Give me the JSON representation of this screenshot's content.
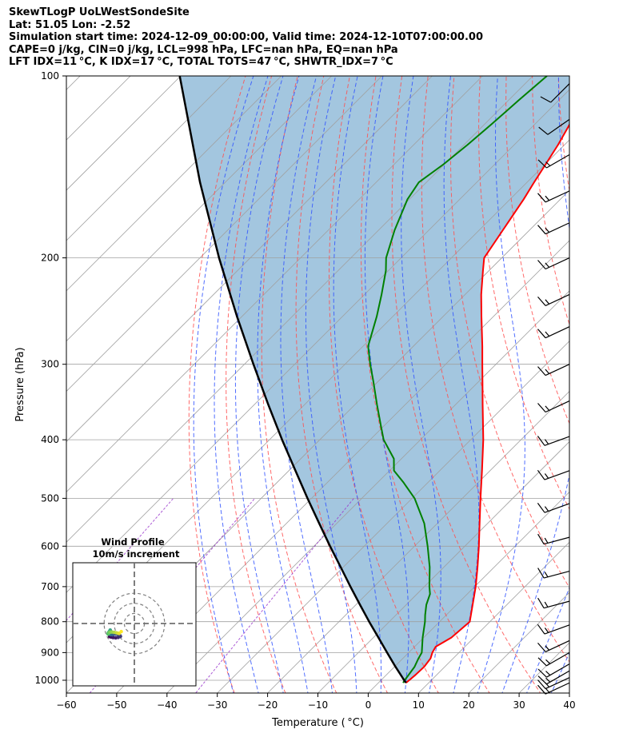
{
  "header": {
    "line1": "SkewTLogP UoLWestSondeSite",
    "line2": "Lat: 51.05   Lon: -2.52",
    "line3": "Simulation start time: 2024-12-09_00:00:00, Valid time: 2024-12-10T07:00:00.00",
    "line4": "CAPE=0 j/kg, CIN=0 j/kg, LCL=998 hPa, LFC=nan hPa, EQ=nan hPa",
    "line5": "LFT IDX=11 °C, K IDX=17 °C, TOTAL TOTS=47 °C, SHWTR_IDX=7 °C"
  },
  "colors": {
    "temperature": "#ff0000",
    "dewpoint": "#008000",
    "parcel": "#000000",
    "cin_shading": "#a3c6df",
    "dry_adiabats": "#ff5050",
    "moist_adiabats": "#3355ff",
    "mixing_ratio": "#9933cc",
    "isotherms": "#a0a0a0"
  },
  "chart_data": [
    {
      "type": "line",
      "title": "",
      "xlabel": "Temperature ( °C)",
      "ylabel": "Pressure (hPa)",
      "xlim": [
        -60,
        40
      ],
      "ylim": [
        1050,
        100
      ],
      "y_scale": "log",
      "skew": true,
      "grid": true,
      "x_ticks": [
        -60,
        -50,
        -40,
        -30,
        -20,
        -10,
        0,
        10,
        20,
        30,
        40
      ],
      "x_tick_labels": [
        "−60",
        "−50",
        "−40",
        "−30",
        "−20",
        "−10",
        "0",
        "10",
        "20",
        "30",
        "40"
      ],
      "y_ticks": [
        1000,
        900,
        800,
        700,
        600,
        500,
        400,
        300,
        200,
        100
      ],
      "y_tick_labels": [
        "1000",
        "900",
        "800",
        "700",
        "600",
        "500",
        "400",
        "300",
        "200",
        "100"
      ],
      "series": [
        {
          "key": "temperature",
          "pressure": [
            1010,
            1000,
            980,
            950,
            920,
            900,
            880,
            850,
            800,
            750,
            700,
            650,
            600,
            550,
            500,
            450,
            400,
            350,
            320,
            300,
            280,
            250,
            230,
            210,
            200,
            180,
            160,
            150,
            140,
            130,
            120,
            110,
            100
          ],
          "values": [
            5.5,
            5.6,
            5.8,
            5.9,
            5.5,
            4.7,
            4.2,
            5.5,
            6.0,
            3.2,
            0.2,
            -3.3,
            -7.2,
            -11.6,
            -16.4,
            -21.6,
            -27.5,
            -34.6,
            -39.3,
            -42.7,
            -46.3,
            -52.4,
            -56.8,
            -61.2,
            -63.5,
            -65.3,
            -67.3,
            -68.6,
            -69.9,
            -71.3,
            -73.1,
            -75.0,
            -77.3
          ]
        },
        {
          "key": "dewpoint",
          "pressure": [
            1010,
            1000,
            950,
            920,
            900,
            850,
            800,
            780,
            750,
            720,
            700,
            650,
            600,
            550,
            500,
            470,
            450,
            430,
            400,
            380,
            350,
            320,
            300,
            280,
            250,
            230,
            210,
            200,
            180,
            160,
            150,
            140,
            130,
            120,
            110,
            100
          ],
          "values": [
            4.9,
            4.7,
            4.0,
            3.1,
            2.6,
            -0.2,
            -2.9,
            -4.2,
            -6.0,
            -7.4,
            -9.0,
            -12.8,
            -17.4,
            -22.6,
            -29.5,
            -35.0,
            -39.1,
            -41.5,
            -47.3,
            -50.5,
            -55.6,
            -61.0,
            -65.0,
            -69.0,
            -73.2,
            -76.6,
            -80.5,
            -83.0,
            -86.8,
            -90.4,
            -91.5,
            -90.2,
            -89.3,
            -88.6,
            -88.0,
            -87.2
          ]
        },
        {
          "key": "parcel",
          "pressure": [
            1010,
            1000,
            950,
            900,
            850,
            800,
            750,
            700,
            650,
            600,
            550,
            500,
            450,
            400,
            350,
            300,
            250,
            200,
            150,
            100
          ],
          "values": [
            5.5,
            4.6,
            0.2,
            -4.3,
            -9.0,
            -14.0,
            -19.2,
            -24.7,
            -30.5,
            -36.8,
            -43.5,
            -50.8,
            -58.7,
            -67.5,
            -77.2,
            -88.2,
            -101.0,
            -116.2,
            -135.0,
            -160.2
          ]
        }
      ],
      "wind_barbs": [
        {
          "p": 1010,
          "speed_kt": 15,
          "dir_deg": 245
        },
        {
          "p": 990,
          "speed_kt": 15,
          "dir_deg": 245
        },
        {
          "p": 965,
          "speed_kt": 15,
          "dir_deg": 240
        },
        {
          "p": 940,
          "speed_kt": 15,
          "dir_deg": 240
        },
        {
          "p": 900,
          "speed_kt": 15,
          "dir_deg": 240
        },
        {
          "p": 860,
          "speed_kt": 15,
          "dir_deg": 245
        },
        {
          "p": 810,
          "speed_kt": 15,
          "dir_deg": 250
        },
        {
          "p": 740,
          "speed_kt": 15,
          "dir_deg": 255
        },
        {
          "p": 660,
          "speed_kt": 15,
          "dir_deg": 255
        },
        {
          "p": 580,
          "speed_kt": 15,
          "dir_deg": 255
        },
        {
          "p": 510,
          "speed_kt": 15,
          "dir_deg": 250
        },
        {
          "p": 450,
          "speed_kt": 15,
          "dir_deg": 250
        },
        {
          "p": 395,
          "speed_kt": 15,
          "dir_deg": 250
        },
        {
          "p": 345,
          "speed_kt": 15,
          "dir_deg": 245
        },
        {
          "p": 300,
          "speed_kt": 15,
          "dir_deg": 245
        },
        {
          "p": 260,
          "speed_kt": 15,
          "dir_deg": 245
        },
        {
          "p": 230,
          "speed_kt": 15,
          "dir_deg": 245
        },
        {
          "p": 200,
          "speed_kt": 15,
          "dir_deg": 245
        },
        {
          "p": 175,
          "speed_kt": 15,
          "dir_deg": 245
        },
        {
          "p": 155,
          "speed_kt": 15,
          "dir_deg": 245
        },
        {
          "p": 135,
          "speed_kt": 15,
          "dir_deg": 240
        },
        {
          "p": 118,
          "speed_kt": 10,
          "dir_deg": 235
        },
        {
          "p": 103,
          "speed_kt": 10,
          "dir_deg": 225
        }
      ]
    },
    {
      "type": "scatter",
      "title": "Wind Profile",
      "subtitle": "10m/s increment",
      "ring_increment_ms": 10,
      "rings": [
        10,
        20,
        30
      ],
      "u_ms": [
        -24.5,
        -23.0,
        -21.0,
        -18.5,
        -16.0,
        -13.8,
        -14.5,
        -16.5,
        -18.5,
        -20.5,
        -22.0,
        -23.5,
        -24.5,
        -25.0,
        -25.5,
        -25.8,
        -24.8,
        -23.8,
        -24.0,
        -24.5,
        -25.0,
        -25.5,
        -26.0,
        -25.8,
        -25.5,
        -24.5,
        -23.5,
        -22.0,
        -20.0,
        -18.0,
        -16.5,
        -15.0,
        -13.0
      ],
      "v_ms": [
        -13.0,
        -13.5,
        -14.0,
        -14.2,
        -13.8,
        -12.8,
        -11.5,
        -10.8,
        -10.5,
        -10.8,
        -11.2,
        -11.0,
        -10.5,
        -10.0,
        -10.0,
        -9.2,
        -8.0,
        -7.0,
        -6.5,
        -7.5,
        -8.5,
        -9.5,
        -10.5,
        -9.8,
        -9.2,
        -8.8,
        -8.5,
        -8.5,
        -8.8,
        -9.2,
        -9.6,
        -9.9,
        -8.0
      ]
    }
  ]
}
